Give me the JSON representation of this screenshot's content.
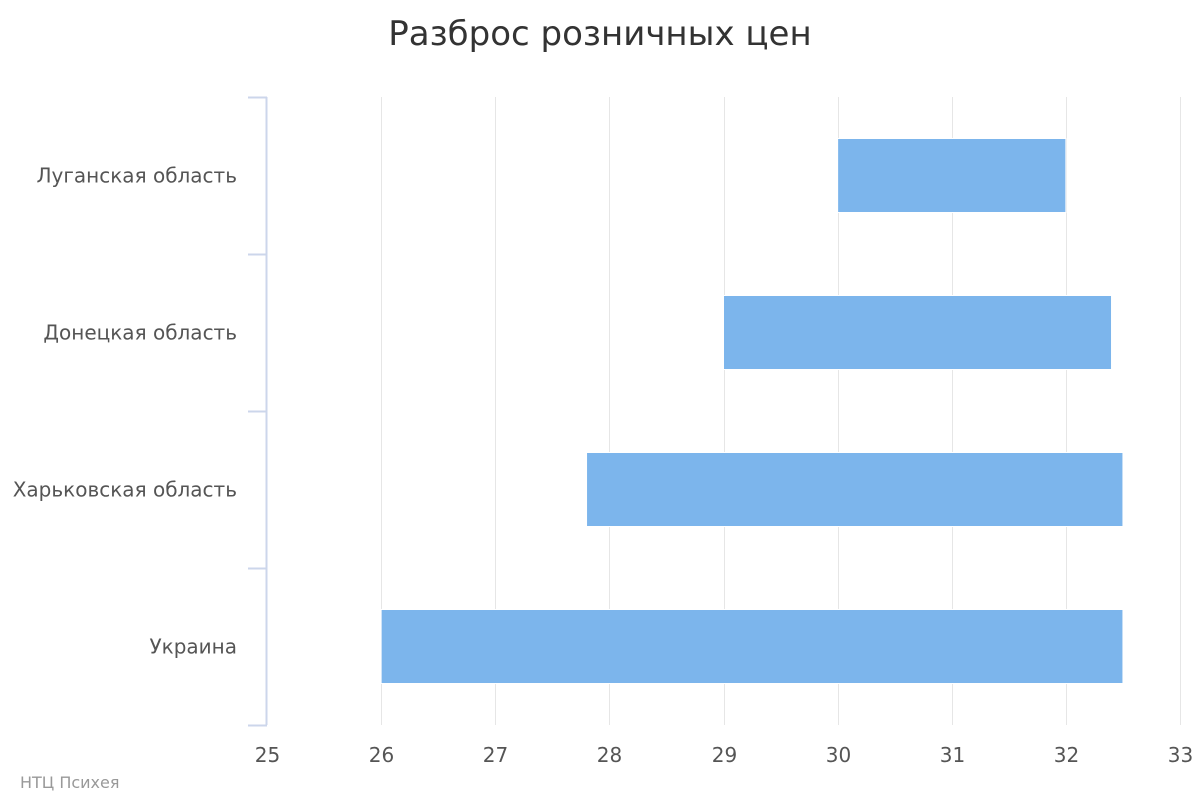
{
  "chart_data": {
    "type": "bar",
    "orientation": "horizontal",
    "title": "Разброс розничных цен",
    "categories": [
      "Луганская область",
      "Донецкая область",
      "Харьковская область",
      "Украина"
    ],
    "series": [
      {
        "low": [
          30.0,
          29.0,
          27.8,
          26.0
        ],
        "high": [
          32.0,
          32.4,
          32.5,
          32.5
        ],
        "color": "#7cb5ec"
      }
    ],
    "xlim": [
      25,
      33
    ],
    "xticks": [
      "25",
      "26",
      "27",
      "28",
      "29",
      "30",
      "31",
      "32",
      "33"
    ],
    "xlabel": "",
    "ylabel": "",
    "grid": true,
    "legend": "none"
  },
  "credits": "НТЦ Психея",
  "colors": {
    "bar": "#7cb5ec",
    "grid": "#e6e6e6",
    "axis": "#ccd6eb",
    "text": "#555555",
    "title": "#333333"
  }
}
